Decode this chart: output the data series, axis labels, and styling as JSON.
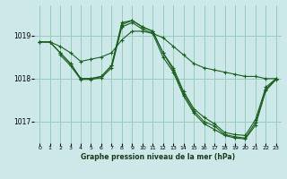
{
  "background_color": "#cce8e8",
  "grid_color": "#99ccbb",
  "line_color": "#1a5e20",
  "xlabel": "Graphe pression niveau de la mer (hPa)",
  "ylim": [
    1016.5,
    1019.7
  ],
  "xlim": [
    -0.5,
    23.5
  ],
  "yticks": [
    1017,
    1018,
    1019
  ],
  "xticks": [
    0,
    1,
    2,
    3,
    4,
    5,
    6,
    7,
    8,
    9,
    10,
    11,
    12,
    13,
    14,
    15,
    16,
    17,
    18,
    19,
    20,
    21,
    22,
    23
  ],
  "series1": {
    "x": [
      0,
      1,
      2,
      3,
      4,
      5,
      6,
      7,
      8,
      9,
      10,
      11,
      12,
      13,
      14,
      15,
      16,
      17,
      18,
      19,
      20,
      21,
      22,
      23
    ],
    "y": [
      1018.85,
      1018.85,
      1018.75,
      1018.6,
      1018.4,
      1018.45,
      1018.5,
      1018.6,
      1018.9,
      1019.1,
      1019.1,
      1019.05,
      1018.95,
      1018.75,
      1018.55,
      1018.35,
      1018.25,
      1018.2,
      1018.15,
      1018.1,
      1018.05,
      1018.05,
      1018.0,
      1018.0
    ]
  },
  "series2": {
    "x": [
      0,
      1,
      2,
      3,
      4,
      5,
      6,
      7,
      8,
      9,
      10,
      11,
      12,
      13,
      14,
      15,
      16,
      17,
      18,
      19,
      20,
      21,
      22,
      23
    ],
    "y": [
      1018.85,
      1018.85,
      1018.6,
      1018.35,
      1018.0,
      1018.0,
      1018.05,
      1018.3,
      1019.3,
      1019.35,
      1019.2,
      1019.1,
      1018.6,
      1018.25,
      1017.7,
      1017.3,
      1017.1,
      1016.95,
      1016.75,
      1016.7,
      1016.68,
      1017.05,
      1017.8,
      1018.0
    ]
  },
  "series3": {
    "x": [
      0,
      1,
      2,
      3,
      4,
      5,
      6,
      7,
      8,
      9,
      10,
      11,
      12,
      13,
      14,
      15,
      16,
      17,
      18,
      19,
      20,
      21,
      22,
      23
    ],
    "y": [
      1018.85,
      1018.85,
      1018.6,
      1018.35,
      1018.0,
      1018.0,
      1018.05,
      1018.3,
      1019.25,
      1019.35,
      1019.2,
      1019.1,
      1018.6,
      1018.2,
      1017.65,
      1017.25,
      1017.0,
      1016.9,
      1016.7,
      1016.65,
      1016.62,
      1016.98,
      1017.75,
      1018.0
    ]
  },
  "series4": {
    "x": [
      2,
      3,
      4,
      5,
      6,
      7,
      8,
      9,
      10,
      11,
      12,
      13,
      14,
      15,
      16,
      17,
      18,
      19,
      20,
      21,
      22,
      23
    ],
    "y": [
      1018.55,
      1018.3,
      1017.98,
      1017.98,
      1018.02,
      1018.25,
      1019.2,
      1019.3,
      1019.15,
      1019.05,
      1018.5,
      1018.15,
      1017.6,
      1017.2,
      1016.95,
      1016.82,
      1016.68,
      1016.62,
      1016.6,
      1016.92,
      1017.72,
      1017.98
    ]
  }
}
